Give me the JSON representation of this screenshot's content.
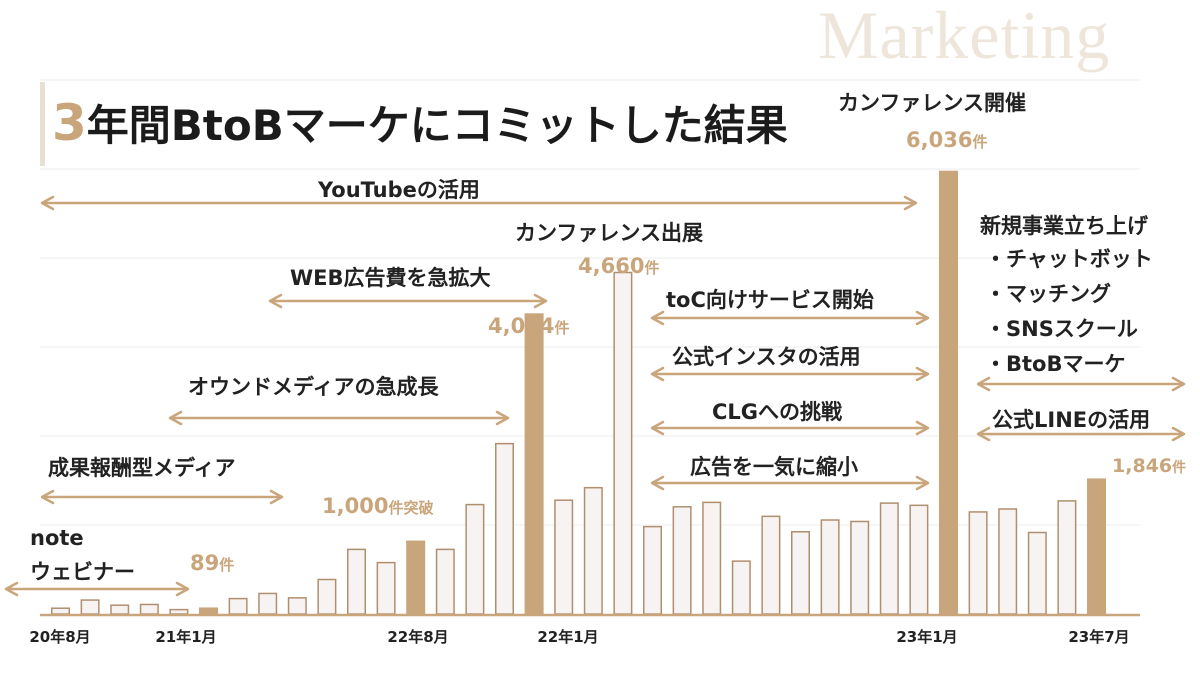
{
  "watermark": "Marketing",
  "title": {
    "number": "3",
    "text": "年間BtoBマーケにコミットした結果"
  },
  "chart_data": {
    "type": "bar",
    "title": "3年間BtoBマーケにコミットした結果",
    "x_tick_labels": [
      "20年8月",
      "21年1月",
      "22年8月",
      "22年1月",
      "23年1月",
      "23年7月"
    ],
    "values": [
      89,
      200,
      130,
      140,
      70,
      89,
      220,
      290,
      230,
      480,
      890,
      710,
      1000,
      890,
      1500,
      2330,
      4094,
      1560,
      1730,
      4660,
      1200,
      1470,
      1530,
      730,
      1340,
      1130,
      1290,
      1270,
      1520,
      1490,
      6036,
      1400,
      1440,
      1120,
      1550,
      1846
    ],
    "highlighted_indices": [
      5,
      12,
      16,
      30,
      35
    ],
    "ylim": [
      0,
      6100
    ],
    "colors": {
      "accent": "#c9a57c",
      "bar_fill": "#f6f3f2",
      "bar_stroke": "#b08f6e",
      "axis": "#c9a57c"
    }
  },
  "value_labels": {
    "v89": {
      "num": "89",
      "unit": "件"
    },
    "v1000": {
      "num": "1,000",
      "unit": "件突破"
    },
    "v4094": {
      "num": "4,094",
      "unit": "件"
    },
    "v4660": {
      "num": "4,660",
      "unit": "件"
    },
    "v6036": {
      "num": "6,036",
      "unit": "件"
    },
    "v1846": {
      "num": "1,846",
      "unit": "件"
    }
  },
  "annotations": {
    "note": "note",
    "webinar": "ウェビナー",
    "seika": "成果報酬型メディア",
    "owned": "オウンドメディアの急成長",
    "webad": "WEB広告費を急拡大",
    "youtube": "YouTubeの活用",
    "conf_exhibit": "カンファレンス出展",
    "toc": "toC向けサービス開始",
    "insta": "公式インスタの活用",
    "clg": "CLGへの挑戦",
    "ad_cut": "広告を一気に縮小",
    "conf_host": "カンファレンス開催",
    "new_biz": "新規事業立ち上げ",
    "line": "公式LINEの活用"
  },
  "new_biz_items": [
    "・チャットボット",
    "・マッチング",
    "・SNSスクール",
    "・BtoBマーケ"
  ]
}
